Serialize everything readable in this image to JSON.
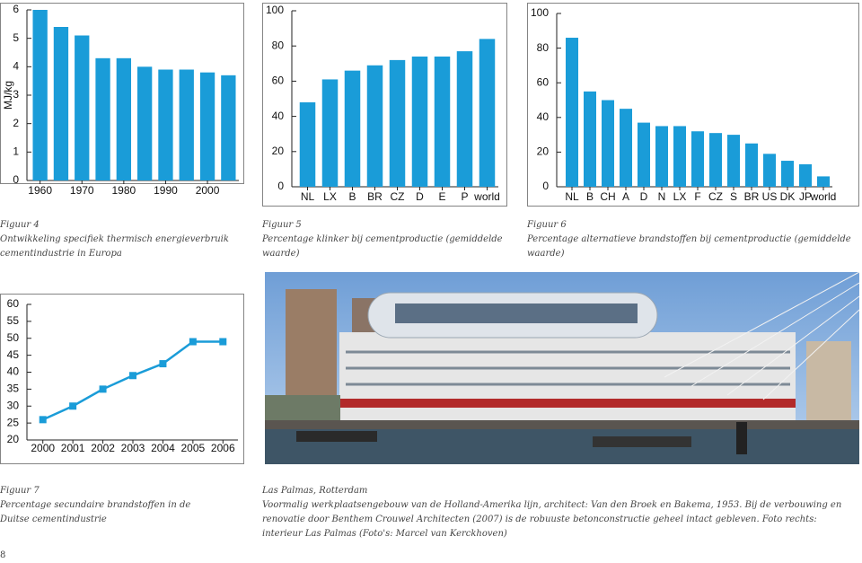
{
  "chart_data": [
    {
      "type": "bar",
      "ylabel": "MJ/kg",
      "categories": [
        "1960",
        null,
        "1970",
        null,
        "1980",
        null,
        "1990",
        null,
        "2000",
        null
      ],
      "values": [
        6.0,
        5.4,
        5.1,
        4.3,
        4.3,
        4.0,
        3.9,
        3.9,
        3.8,
        3.7
      ],
      "color": "#1a9cd8",
      "ylim": [
        0,
        6
      ],
      "yticks": [
        0,
        1,
        2,
        3,
        4,
        5,
        6
      ]
    },
    {
      "type": "bar",
      "categories": [
        "NL",
        "LX",
        "B",
        "BR",
        "CZ",
        "D",
        "E",
        "P",
        "world"
      ],
      "values": [
        48,
        61,
        66,
        69,
        72,
        74,
        74,
        77,
        84
      ],
      "color": "#1a9cd8",
      "ylim": [
        0,
        100
      ],
      "yticks": [
        0,
        20,
        40,
        60,
        80,
        100
      ]
    },
    {
      "type": "bar",
      "categories": [
        "NL",
        "B",
        "CH",
        "A",
        "D",
        "N",
        "LX",
        "F",
        "CZ",
        "S",
        "BR",
        "US",
        "DK",
        "JP",
        "world"
      ],
      "values": [
        86,
        55,
        50,
        45,
        37,
        35,
        35,
        32,
        31,
        30,
        25,
        19,
        15,
        13,
        6
      ],
      "color": "#1a9cd8",
      "ylim": [
        0,
        100
      ],
      "yticks": [
        0,
        20,
        40,
        60,
        80,
        100
      ]
    },
    {
      "type": "line",
      "categories": [
        "2000",
        "2001",
        "2002",
        "2003",
        "2004",
        "2005",
        "2006"
      ],
      "values": [
        26,
        30,
        35,
        39,
        42.5,
        49,
        49
      ],
      "color": "#1a9cd8",
      "ylim": [
        20,
        60
      ],
      "yticks": [
        20,
        25,
        30,
        35,
        40,
        45,
        50,
        55,
        60
      ]
    }
  ],
  "captions": [
    {
      "figure": "Figuur 4",
      "text": "Ontwikkeling specifiek thermisch energieverbruik cementindustrie in Europa"
    },
    {
      "figure": "Figuur 5",
      "text": "Percentage klinker bij cementproductie (gemiddelde waarde)"
    },
    {
      "figure": "Figuur 6",
      "text": "Percentage alternatieve brandstoffen bij cementproductie (gemiddelde waarde)"
    },
    {
      "figure": "Figuur 7",
      "text": "Percentage secundaire brandstoffen in de Duitse cementindustrie"
    }
  ],
  "photo_caption": {
    "title": "Las Palmas, Rotterdam",
    "text": "Voormalig werkplaatsengebouw van de Holland-Amerika lijn, architect: Van den Broek en Bakema, 1953. Bij de verbouwing en renovatie door Benthem Crouwel Architecten (2007) is de robuuste betonconstructie geheel intact gebleven. Foto rechts: interieur Las Palmas (Foto's: Marcel van Kerckhoven)"
  },
  "page_number": "8"
}
